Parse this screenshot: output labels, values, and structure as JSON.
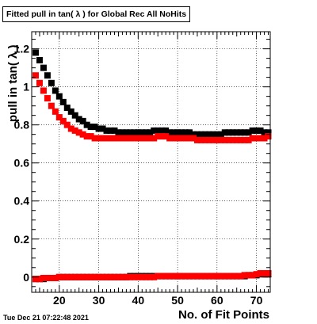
{
  "title": "Fitted pull in tan( λ ) for Global Rec All NoHits",
  "timestamp": "Tue Dec 21 07:22:48 2021",
  "chart_data": {
    "type": "scatter",
    "title": "Fitted pull in tan( λ ) for Global Rec All NoHits",
    "xlabel": "No. of Fit Points",
    "ylabel": "pull in tan( λ )",
    "xlim": [
      13,
      73.5
    ],
    "ylim": [
      -0.08,
      1.29
    ],
    "xticks": [
      20,
      30,
      40,
      50,
      60,
      70
    ],
    "yticks": [
      0,
      0.2,
      0.4,
      0.6,
      0.8,
      1,
      1.2
    ],
    "ytick_labels": [
      "0",
      "0.2",
      "0.4",
      "0.6",
      "0.8",
      "1",
      "1.2"
    ],
    "grid": true,
    "series": [
      {
        "color": "#000000",
        "x": [
          14,
          15,
          16,
          17,
          18,
          19,
          20,
          21,
          22,
          23,
          24,
          25,
          26,
          27,
          28,
          29,
          30,
          31,
          32,
          33,
          34,
          35,
          36,
          37,
          38,
          39,
          40,
          41,
          42,
          43,
          44,
          45,
          46,
          47,
          48,
          49,
          50,
          51,
          52,
          53,
          54,
          55,
          56,
          57,
          58,
          59,
          60,
          61,
          62,
          63,
          64,
          65,
          66,
          67,
          68,
          69,
          70,
          71,
          72,
          73
        ],
        "y": [
          1.18,
          1.14,
          1.1,
          1.06,
          1.02,
          0.98,
          0.95,
          0.92,
          0.89,
          0.87,
          0.85,
          0.83,
          0.82,
          0.8,
          0.79,
          0.79,
          0.78,
          0.78,
          0.77,
          0.77,
          0.77,
          0.76,
          0.76,
          0.76,
          0.76,
          0.76,
          0.76,
          0.76,
          0.76,
          0.76,
          0.77,
          0.77,
          0.77,
          0.77,
          0.76,
          0.76,
          0.76,
          0.76,
          0.76,
          0.76,
          0.75,
          0.75,
          0.75,
          0.75,
          0.75,
          0.75,
          0.75,
          0.75,
          0.76,
          0.76,
          0.76,
          0.76,
          0.76,
          0.76,
          0.76,
          0.77,
          0.77,
          0.77,
          0.76,
          0.76
        ]
      },
      {
        "color": "#ff0000",
        "x": [
          14,
          15,
          16,
          17,
          18,
          19,
          20,
          21,
          22,
          23,
          24,
          25,
          26,
          27,
          28,
          29,
          30,
          31,
          32,
          33,
          34,
          35,
          36,
          37,
          38,
          39,
          40,
          41,
          42,
          43,
          44,
          45,
          46,
          47,
          48,
          49,
          50,
          51,
          52,
          53,
          54,
          55,
          56,
          57,
          58,
          59,
          60,
          61,
          62,
          63,
          64,
          65,
          66,
          67,
          68,
          69,
          70,
          71,
          72,
          73
        ],
        "y": [
          1.06,
          1.02,
          0.98,
          0.94,
          0.9,
          0.87,
          0.84,
          0.82,
          0.8,
          0.78,
          0.77,
          0.76,
          0.75,
          0.74,
          0.74,
          0.73,
          0.73,
          0.73,
          0.73,
          0.73,
          0.73,
          0.73,
          0.73,
          0.73,
          0.73,
          0.73,
          0.73,
          0.73,
          0.73,
          0.73,
          0.73,
          0.74,
          0.74,
          0.74,
          0.73,
          0.73,
          0.73,
          0.73,
          0.73,
          0.73,
          0.73,
          0.72,
          0.72,
          0.72,
          0.72,
          0.72,
          0.72,
          0.72,
          0.72,
          0.72,
          0.72,
          0.72,
          0.72,
          0.72,
          0.72,
          0.73,
          0.73,
          0.73,
          0.73,
          0.74
        ]
      },
      {
        "color": "#000000",
        "x": [
          14,
          15,
          16,
          17,
          18,
          19,
          20,
          21,
          22,
          23,
          24,
          25,
          26,
          27,
          28,
          29,
          30,
          31,
          32,
          33,
          34,
          35,
          36,
          37,
          38,
          39,
          40,
          41,
          42,
          43,
          44,
          45,
          46,
          47,
          48,
          49,
          50,
          51,
          52,
          53,
          54,
          55,
          56,
          57,
          58,
          59,
          60,
          61,
          62,
          63,
          64,
          65,
          66,
          67,
          68,
          69,
          70,
          71,
          72,
          73
        ],
        "y": [
          -0.01,
          -0.01,
          -0.01,
          -0.005,
          -0.005,
          -0.005,
          0,
          0,
          0,
          0,
          0,
          0,
          0,
          0,
          0,
          0,
          0,
          0,
          0,
          0,
          0,
          0,
          0,
          0,
          0.005,
          0.005,
          0.005,
          0.005,
          0.005,
          0.005,
          0.005,
          0.005,
          0.005,
          0.005,
          0.005,
          0.005,
          0.005,
          0.005,
          0.005,
          0.005,
          0.005,
          0.005,
          0.005,
          0.005,
          0.005,
          0.005,
          0.005,
          0.005,
          0.005,
          0.005,
          0.005,
          0.005,
          0.005,
          0.005,
          0.01,
          0.01,
          0.01,
          0.015,
          0.015,
          0.015
        ]
      },
      {
        "color": "#ff0000",
        "x": [
          14,
          15,
          16,
          17,
          18,
          19,
          20,
          21,
          22,
          23,
          24,
          25,
          26,
          27,
          28,
          29,
          30,
          31,
          32,
          33,
          34,
          35,
          36,
          37,
          38,
          39,
          40,
          41,
          42,
          43,
          44,
          45,
          46,
          47,
          48,
          49,
          50,
          51,
          52,
          53,
          54,
          55,
          56,
          57,
          58,
          59,
          60,
          61,
          62,
          63,
          64,
          65,
          66,
          67,
          68,
          69,
          70,
          71,
          72,
          73
        ],
        "y": [
          -0.01,
          -0.01,
          -0.005,
          -0.005,
          -0.005,
          -0.005,
          0,
          0,
          0,
          0,
          0,
          0,
          0,
          0,
          0,
          0,
          0,
          0,
          0,
          0,
          0,
          0,
          0,
          0,
          0,
          0,
          0,
          0,
          0,
          0,
          0,
          0.005,
          0.005,
          0.005,
          0.005,
          0.005,
          0.005,
          0.005,
          0.005,
          0.005,
          0.005,
          0.005,
          0.005,
          0.005,
          0.005,
          0.005,
          0.005,
          0.005,
          0.005,
          0.005,
          0.005,
          0.005,
          0.005,
          0.01,
          0.01,
          0.01,
          0.015,
          0.02,
          0.02,
          0.02
        ]
      }
    ]
  }
}
